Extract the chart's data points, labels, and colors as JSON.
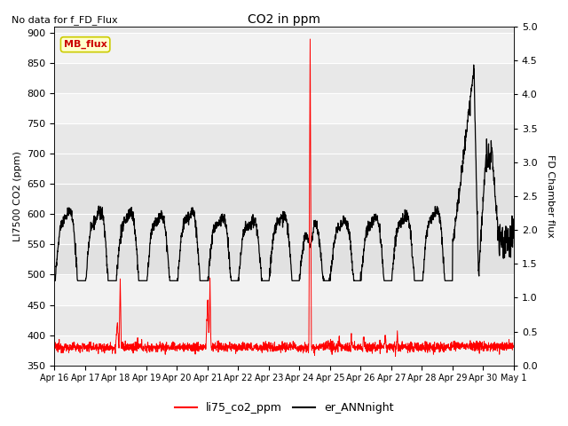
{
  "title": "CO2 in ppm",
  "top_note": "No data for f_FD_Flux",
  "ylabel_left": "LI7500 CO2 (ppm)",
  "ylabel_right": "FD Chamber flux",
  "ylim_left": [
    350,
    910
  ],
  "ylim_right": [
    0.0,
    5.0
  ],
  "yticks_left": [
    350,
    400,
    450,
    500,
    550,
    600,
    650,
    700,
    750,
    800,
    850,
    900
  ],
  "yticks_right": [
    0.0,
    0.5,
    1.0,
    1.5,
    2.0,
    2.5,
    3.0,
    3.5,
    4.0,
    4.5,
    5.0
  ],
  "xticklabels": [
    "Apr 16",
    "Apr 17",
    "Apr 18",
    "Apr 19",
    "Apr 20",
    "Apr 21",
    "Apr 22",
    "Apr 23",
    "Apr 24",
    "Apr 25",
    "Apr 26",
    "Apr 27",
    "Apr 28",
    "Apr 29",
    "Apr 30",
    "May 1"
  ],
  "legend_label1": "li75_co2_ppm",
  "legend_label2": "er_ANNnight",
  "legend_box_label": "MB_flux",
  "line1_color": "#ff0000",
  "line2_color": "#000000",
  "bg_outer": "#e8e8e8",
  "bg_inner": "#f5f5f5",
  "shaded_region": [
    500,
    700
  ]
}
